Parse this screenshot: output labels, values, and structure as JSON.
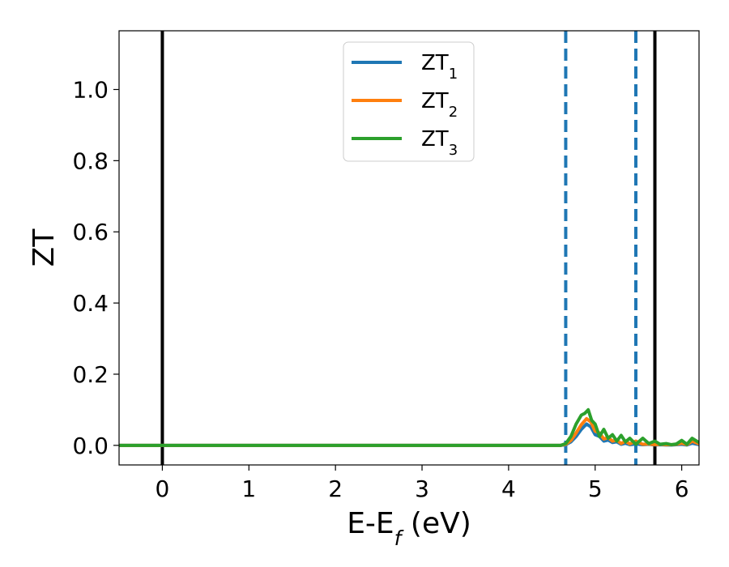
{
  "chart_data": {
    "type": "line",
    "xlabel": {
      "main": "E-E",
      "sub": "f",
      "rest": " (eV)"
    },
    "ylabel": "ZT",
    "xlim": [
      -0.5,
      6.2
    ],
    "ylim": [
      -0.055,
      1.165
    ],
    "xticks": [
      0,
      1,
      2,
      3,
      4,
      5,
      6
    ],
    "xtick_labels": [
      "0",
      "1",
      "2",
      "3",
      "4",
      "5",
      "6"
    ],
    "yticks": [
      0.0,
      0.2,
      0.4,
      0.6,
      0.8,
      1.0
    ],
    "ytick_labels": [
      "0.0",
      "0.2",
      "0.4",
      "0.6",
      "0.8",
      "1.0"
    ],
    "legend_position": "top-center",
    "vlines": [
      {
        "x": 0.0,
        "style": "solid",
        "color": "#000000"
      },
      {
        "x": 5.69,
        "style": "solid",
        "color": "#000000"
      },
      {
        "x": 4.66,
        "style": "dashed",
        "color": "#1f77b4"
      },
      {
        "x": 5.47,
        "style": "dashed",
        "color": "#1f77b4"
      }
    ],
    "series": [
      {
        "name": "ZT",
        "sub": "1",
        "color": "#1f77b4",
        "x": [
          -0.5,
          4.6,
          4.66,
          4.72,
          4.78,
          4.84,
          4.9,
          4.95,
          5.0,
          5.05,
          5.1,
          5.15,
          5.2,
          5.25,
          5.3,
          5.35,
          5.4,
          5.47,
          5.55,
          5.62,
          5.69,
          5.75,
          5.82,
          5.88,
          5.94,
          6.0,
          6.06,
          6.12,
          6.2
        ],
        "y": [
          0.0,
          0.0,
          0.002,
          0.01,
          0.025,
          0.045,
          0.06,
          0.052,
          0.03,
          0.025,
          0.012,
          0.015,
          0.008,
          0.01,
          0.003,
          0.006,
          0.002,
          0.004,
          0.002,
          0.003,
          0.001,
          0.002,
          0.001,
          0.001,
          0.002,
          0.003,
          0.001,
          0.006,
          0.002
        ]
      },
      {
        "name": "ZT",
        "sub": "2",
        "color": "#ff7f0e",
        "x": [
          -0.5,
          4.6,
          4.66,
          4.72,
          4.78,
          4.84,
          4.9,
          4.95,
          5.0,
          5.05,
          5.1,
          5.15,
          5.2,
          5.25,
          5.3,
          5.35,
          5.4,
          5.47,
          5.55,
          5.62,
          5.69,
          5.75,
          5.82,
          5.88,
          5.94,
          6.0,
          6.06,
          6.12,
          6.2
        ],
        "y": [
          0.0,
          0.0,
          0.003,
          0.014,
          0.035,
          0.058,
          0.075,
          0.066,
          0.04,
          0.035,
          0.018,
          0.022,
          0.012,
          0.015,
          0.005,
          0.012,
          0.004,
          0.012,
          0.003,
          0.004,
          0.002,
          0.003,
          0.002,
          0.002,
          0.003,
          0.006,
          0.002,
          0.012,
          0.004
        ]
      },
      {
        "name": "ZT",
        "sub": "3",
        "color": "#2ca02c",
        "x": [
          -0.5,
          4.6,
          4.66,
          4.72,
          4.78,
          4.84,
          4.88,
          4.92,
          4.96,
          5.0,
          5.05,
          5.1,
          5.15,
          5.2,
          5.25,
          5.3,
          5.35,
          5.4,
          5.47,
          5.55,
          5.62,
          5.69,
          5.75,
          5.82,
          5.88,
          5.94,
          6.0,
          6.06,
          6.12,
          6.2
        ],
        "y": [
          0.0,
          0.0,
          0.005,
          0.025,
          0.06,
          0.085,
          0.09,
          0.1,
          0.07,
          0.06,
          0.025,
          0.045,
          0.02,
          0.03,
          0.012,
          0.028,
          0.01,
          0.02,
          0.003,
          0.02,
          0.005,
          0.012,
          0.003,
          0.005,
          0.002,
          0.004,
          0.014,
          0.003,
          0.02,
          0.008
        ]
      }
    ]
  }
}
